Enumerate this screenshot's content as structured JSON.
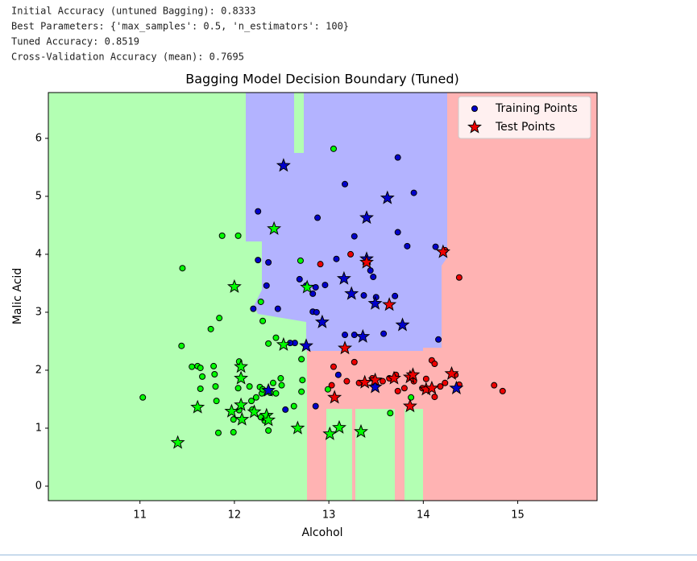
{
  "output": [
    "Initial Accuracy (untuned Bagging): 0.8333",
    "Best Parameters: {'max_samples': 0.5, 'n_estimators': 100}",
    "Tuned Accuracy: 0.8519",
    "Cross-Validation Accuracy (mean): 0.7695"
  ],
  "chart_data": {
    "type": "scatter",
    "title": "Bagging Model Decision Boundary (Tuned)",
    "x_label": "Alcohol",
    "y_label": "Malic Acid",
    "xlim": [
      10.03,
      15.84
    ],
    "ylim": [
      -0.25,
      6.79
    ],
    "xticks": [
      11,
      12,
      13,
      14,
      15
    ],
    "yticks": [
      0,
      1,
      2,
      3,
      4,
      5,
      6
    ],
    "legend": "upper right",
    "series": [
      {
        "name": "Training Points",
        "marker": "circle",
        "color": "#0000cc",
        "groups": [
          {
            "color": "#00ff00",
            "x": [
              11.03,
              11.45,
              11.44,
              11.55,
              11.61,
              11.64,
              11.66,
              11.64,
              11.81,
              11.8,
              11.79,
              11.78,
              11.75,
              11.84,
              11.87,
              12.04,
              11.83,
              11.99,
              11.99,
              12.05,
              12.05,
              12.04,
              12.16,
              12.18,
              12.23,
              12.19,
              12.27,
              12.29,
              12.3,
              12.28,
              12.32,
              12.36,
              12.38,
              12.41,
              12.44,
              12.49,
              12.5,
              12.44,
              12.36,
              12.3,
              12.28,
              12.7,
              12.71,
              12.72,
              12.71,
              12.63,
              12.99,
              13.05,
              13.65,
              13.87
            ],
            "values": [
              1.53,
              3.76,
              2.42,
              2.06,
              2.07,
              2.04,
              1.89,
              1.68,
              1.47,
              1.72,
              1.93,
              2.07,
              2.71,
              2.9,
              4.32,
              4.32,
              0.92,
              0.93,
              1.15,
              1.31,
              2.15,
              1.69,
              1.72,
              1.47,
              1.53,
              1.32,
              1.71,
              1.6,
              1.67,
              1.19,
              1.13,
              0.96,
              1.61,
              1.78,
              1.6,
              1.86,
              1.74,
              2.56,
              2.46,
              2.85,
              3.18,
              3.89,
              2.19,
              1.83,
              1.63,
              1.38,
              1.67,
              5.82,
              1.26,
              1.53
            ]
          },
          {
            "color": "#0000cc",
            "x": [
              12.25,
              12.25,
              12.36,
              12.88,
              13.17,
              13.73,
              13.9,
              13.73,
              13.83,
              14.13,
              13.27,
              13.08,
              12.96,
              12.86,
              12.83,
              12.83,
              12.87,
              12.69,
              12.76,
              12.46,
              12.2,
              12.34,
              12.64,
              13.17,
              13.27,
              13.37,
              13.44,
              13.47,
              13.5,
              13.58,
              13.7,
              14.16,
              13.1,
              12.86,
              12.54,
              12.59
            ],
            "values": [
              4.74,
              3.9,
              3.86,
              4.63,
              5.21,
              5.67,
              5.06,
              4.38,
              4.14,
              4.13,
              4.31,
              3.92,
              3.47,
              3.43,
              3.32,
              3.01,
              3.0,
              3.57,
              3.46,
              3.06,
              3.06,
              3.46,
              2.47,
              2.61,
              2.61,
              3.29,
              3.72,
              3.61,
              3.26,
              2.63,
              3.28,
              2.53,
              1.92,
              1.38,
              1.32,
              2.47
            ]
          },
          {
            "color": "#ee0000",
            "x": [
              12.91,
              13.23,
              14.38,
              14.23,
              14.75,
              14.84,
              13.05,
              13.03,
              13.19,
              13.27,
              13.32,
              13.46,
              13.57,
              13.64,
              13.71,
              13.73,
              13.8,
              13.9,
              13.99,
              14.03,
              14.09,
              14.12,
              14.12,
              14.18,
              14.23,
              14.34,
              14.38
            ],
            "values": [
              3.83,
              4.0,
              3.6,
              4.07,
              1.74,
              1.64,
              2.06,
              1.74,
              1.81,
              2.14,
              1.78,
              1.86,
              1.81,
              1.86,
              1.92,
              1.64,
              1.69,
              1.81,
              1.69,
              1.85,
              2.17,
              2.11,
              1.54,
              1.72,
              1.78,
              1.92,
              1.75
            ]
          }
        ]
      },
      {
        "name": "Test Points",
        "marker": "star",
        "color": "#ee0000",
        "groups": [
          {
            "color": "#00ff00",
            "x": [
              11.4,
              11.61,
              12.0,
              12.07,
              12.07,
              12.07,
              12.08,
              11.97,
              12.21,
              12.34,
              12.36,
              12.67,
              12.42,
              12.77,
              12.52,
              13.01,
              13.11,
              13.34
            ],
            "values": [
              0.75,
              1.36,
              3.44,
              2.06,
              1.86,
              1.4,
              1.15,
              1.29,
              1.28,
              1.22,
              1.14,
              1.0,
              4.44,
              3.43,
              2.44,
              0.9,
              1.01,
              0.94
            ]
          },
          {
            "color": "#0000cc",
            "x": [
              12.52,
              13.62,
              13.4,
              13.16,
              13.24,
              13.49,
              12.93,
              13.36,
              13.78,
              13.4,
              12.76,
              12.36,
              13.49,
              14.35
            ],
            "values": [
              5.53,
              4.97,
              4.63,
              3.58,
              3.32,
              3.15,
              2.83,
              2.58,
              2.78,
              3.92,
              2.42,
              1.65,
              1.71,
              1.69
            ]
          },
          {
            "color": "#ee0000",
            "x": [
              14.21,
              13.4,
              13.64,
              13.17,
              13.06,
              13.38,
              13.49,
              13.69,
              13.86,
              13.89,
              13.86,
              14.03,
              14.3,
              14.09
            ],
            "values": [
              4.04,
              3.86,
              3.13,
              2.38,
              1.53,
              1.79,
              1.83,
              1.86,
              1.88,
              1.92,
              1.38,
              1.67,
              1.94,
              1.69
            ]
          }
        ]
      }
    ]
  }
}
